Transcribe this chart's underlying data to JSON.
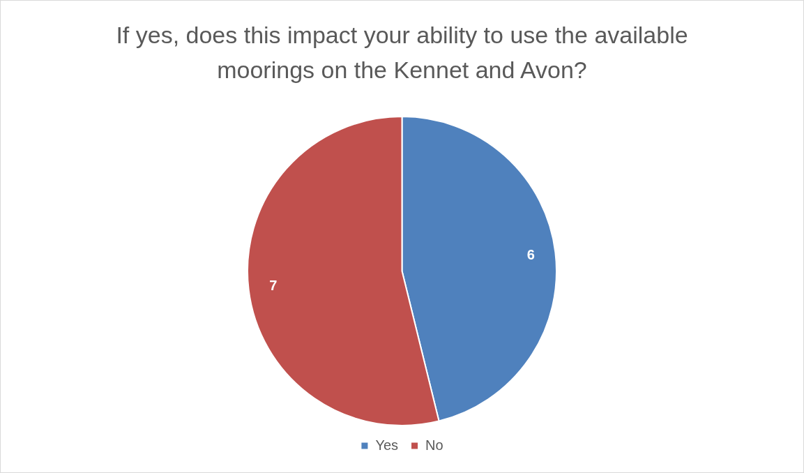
{
  "chart_data": {
    "type": "pie",
    "title": "If yes, does this impact your ability to use the available moorings on the Kennet and Avon?",
    "categories": [
      "Yes",
      "No"
    ],
    "values": [
      6,
      7
    ],
    "colors": [
      "#4f81bd",
      "#c0504d"
    ],
    "data_labels": true,
    "legend": "bottom"
  }
}
